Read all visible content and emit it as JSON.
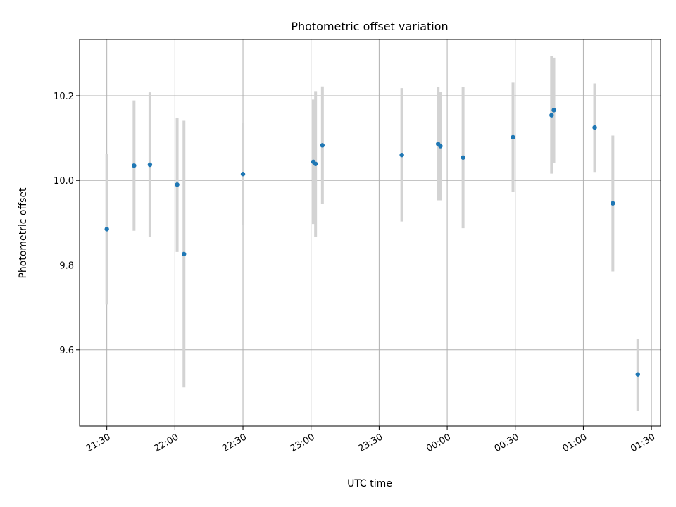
{
  "chart_data": {
    "type": "scatter",
    "title": "Photometric offset variation",
    "xlabel": "UTC time",
    "ylabel": "Photometric offset",
    "x_unit": "UTC time (HH:MM, night spanning midnight)",
    "x_ticks": [
      "21:30",
      "22:00",
      "22:30",
      "23:00",
      "23:30",
      "00:00",
      "00:30",
      "01:00",
      "01:30"
    ],
    "y_ticks": [
      "9.6",
      "9.8",
      "10.0",
      "10.2"
    ],
    "xlim": [
      "21:18",
      "01:34"
    ],
    "ylim": [
      9.42,
      10.333
    ],
    "grid": true,
    "colors": {
      "point": "#1f77b4",
      "errorbar": "#d3d3d3"
    },
    "points": [
      {
        "x": "21:30",
        "y": 9.885,
        "yerr_low": 9.707,
        "yerr_high": 10.063
      },
      {
        "x": "21:42",
        "y": 10.035,
        "yerr_low": 9.881,
        "yerr_high": 10.189
      },
      {
        "x": "21:49",
        "y": 10.037,
        "yerr_low": 9.866,
        "yerr_high": 10.208
      },
      {
        "x": "22:01",
        "y": 9.99,
        "yerr_low": 9.831,
        "yerr_high": 10.148
      },
      {
        "x": "22:04",
        "y": 9.826,
        "yerr_low": 9.511,
        "yerr_high": 10.141
      },
      {
        "x": "22:30",
        "y": 10.015,
        "yerr_low": 9.894,
        "yerr_high": 10.136
      },
      {
        "x": "23:01",
        "y": 10.044,
        "yerr_low": 9.897,
        "yerr_high": 10.191
      },
      {
        "x": "23:02",
        "y": 10.039,
        "yerr_low": 9.866,
        "yerr_high": 10.211
      },
      {
        "x": "23:05",
        "y": 10.083,
        "yerr_low": 9.944,
        "yerr_high": 10.222
      },
      {
        "x": "23:40",
        "y": 10.06,
        "yerr_low": 9.903,
        "yerr_high": 10.218
      },
      {
        "x": "23:56",
        "y": 10.086,
        "yerr_low": 9.953,
        "yerr_high": 10.221
      },
      {
        "x": "23:57",
        "y": 10.081,
        "yerr_low": 9.953,
        "yerr_high": 10.209
      },
      {
        "x": "00:07",
        "y": 10.054,
        "yerr_low": 9.887,
        "yerr_high": 10.221
      },
      {
        "x": "00:29",
        "y": 10.102,
        "yerr_low": 9.973,
        "yerr_high": 10.231
      },
      {
        "x": "00:46",
        "y": 10.154,
        "yerr_low": 10.016,
        "yerr_high": 10.293
      },
      {
        "x": "00:47",
        "y": 10.166,
        "yerr_low": 10.041,
        "yerr_high": 10.29
      },
      {
        "x": "01:05",
        "y": 10.125,
        "yerr_low": 10.02,
        "yerr_high": 10.229
      },
      {
        "x": "01:13",
        "y": 9.946,
        "yerr_low": 9.785,
        "yerr_high": 10.106
      },
      {
        "x": "01:24",
        "y": 9.542,
        "yerr_low": 9.456,
        "yerr_high": 9.626
      }
    ]
  }
}
